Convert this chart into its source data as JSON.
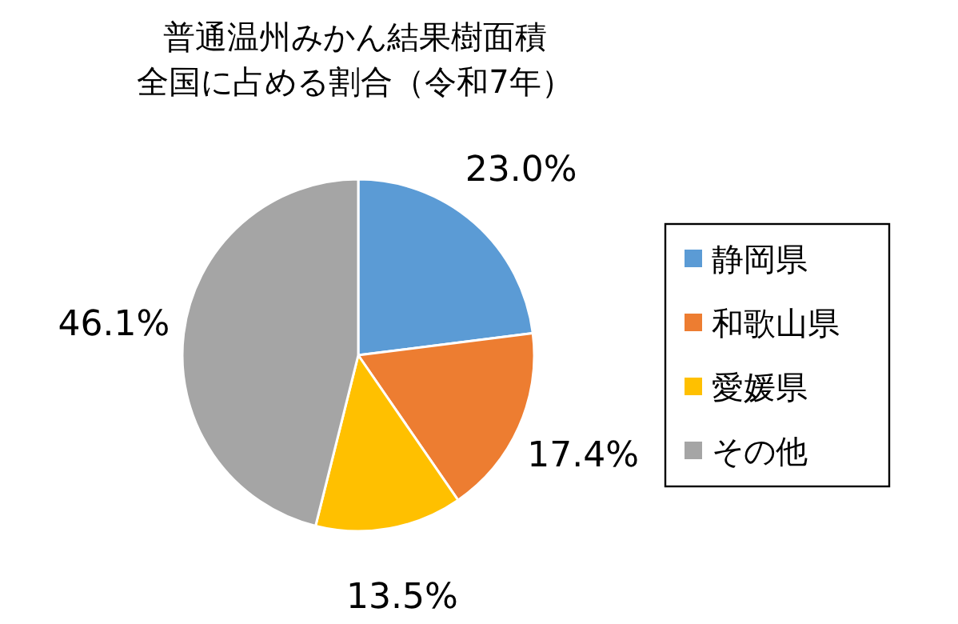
{
  "chart_data": {
    "type": "pie",
    "title": "普通温州みかん結果樹面積",
    "subtitle": "全国に占める割合（令和7年）",
    "categories": [
      "静岡県",
      "和歌山県",
      "愛媛県",
      "その他"
    ],
    "values": [
      23.0,
      17.4,
      13.5,
      46.1
    ],
    "value_labels": [
      "23.0%",
      "17.4%",
      "13.5%",
      "46.1%"
    ],
    "colors": [
      "#5b9bd5",
      "#ed7d31",
      "#ffc000",
      "#a5a5a5"
    ],
    "legend": "right"
  }
}
